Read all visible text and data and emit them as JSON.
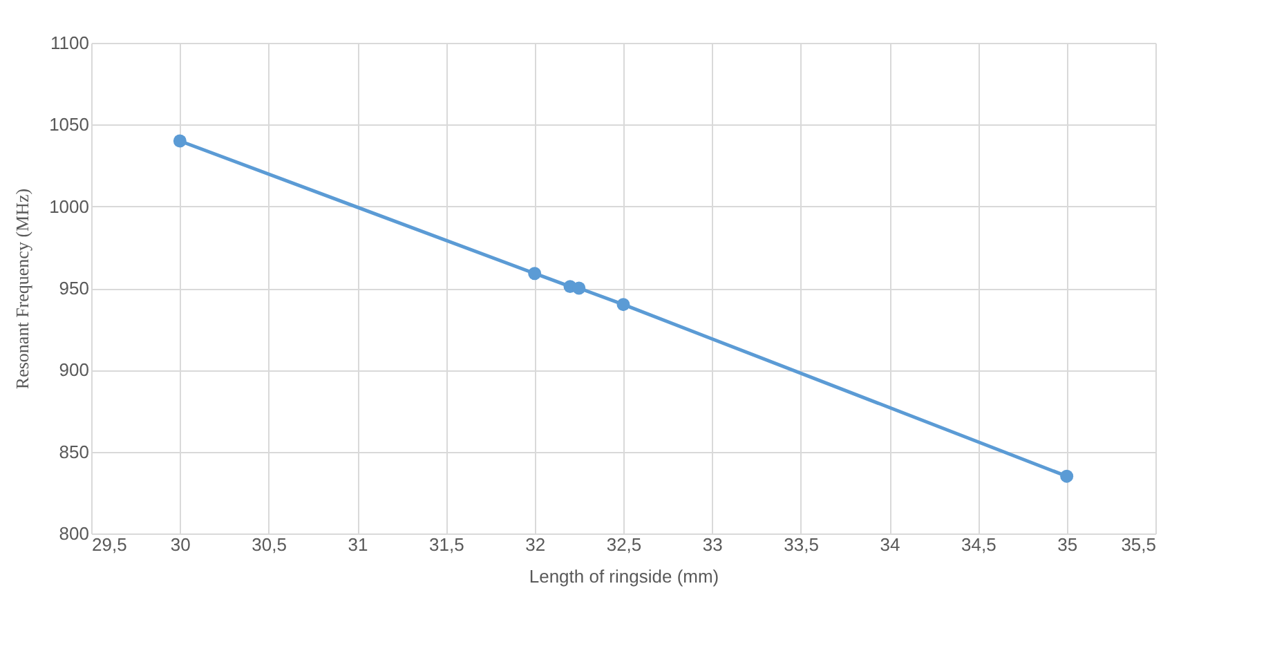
{
  "chart_data": {
    "type": "line",
    "xlabel": "Length of ringside (mm)",
    "ylabel": "Resonant Frequency (MHz)",
    "x": [
      30,
      32,
      32.2,
      32.25,
      32.5,
      35
    ],
    "series": [
      {
        "color": "#5b9bd5",
        "values": [
          1040,
          959,
          951,
          950,
          940,
          835
        ]
      }
    ],
    "xlim": [
      29.5,
      35.5
    ],
    "xticks": [
      {
        "value": 29.5,
        "label": "29,5"
      },
      30,
      {
        "value": 30.5,
        "label": "30,5"
      },
      31,
      {
        "value": 31.5,
        "label": "31,5"
      },
      32,
      {
        "value": 32.5,
        "label": "32,5"
      },
      33,
      {
        "value": 33.5,
        "label": "33,5"
      },
      34,
      {
        "value": 34.5,
        "label": "34,5"
      },
      35,
      {
        "value": 35.5,
        "label": "35,5"
      }
    ],
    "ylim": [
      800,
      1100
    ],
    "yticks": [
      800,
      850,
      900,
      950,
      1000,
      1050,
      1100
    ],
    "grid": true,
    "marker": "circle",
    "line_style": "solid"
  }
}
